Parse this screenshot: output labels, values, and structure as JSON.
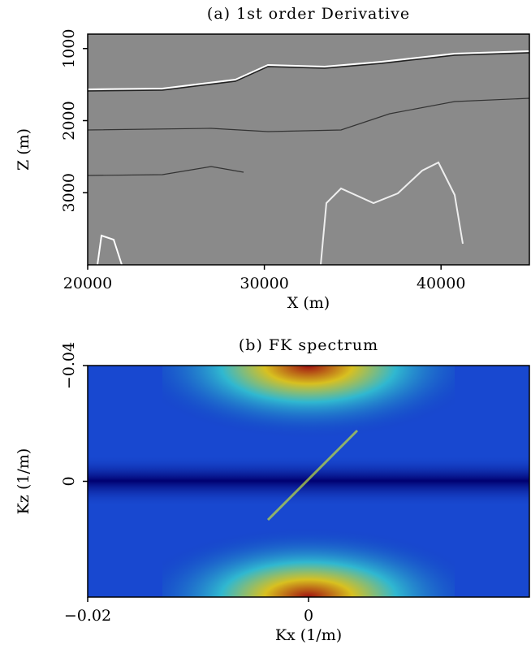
{
  "chart_data": [
    {
      "type": "image",
      "title": "(a) 1st order Derivative",
      "xlabel": "X (m)",
      "ylabel": "Z (m)",
      "xlim": [
        20000,
        45000
      ],
      "xticks": [
        20000,
        30000,
        40000
      ],
      "ylim": [
        800,
        4000
      ],
      "yticks": [
        1000,
        2000,
        3000
      ],
      "y_reversed": true,
      "colormap": "gray"
    },
    {
      "type": "image",
      "title": "(b) FK spectrum",
      "xlabel": "Kx (1/m)",
      "ylabel": "Kz (1/m)",
      "xlim": [
        -0.02,
        0.02
      ],
      "xticks": [
        {
          "value": -0.02,
          "label": "−0.02"
        },
        0
      ],
      "ylim": [
        -0.04,
        0.04
      ],
      "yticks": [
        {
          "value": -0.04,
          "label": "−0.04"
        },
        0
      ],
      "y_reversed": true,
      "colormap": "jet"
    }
  ]
}
